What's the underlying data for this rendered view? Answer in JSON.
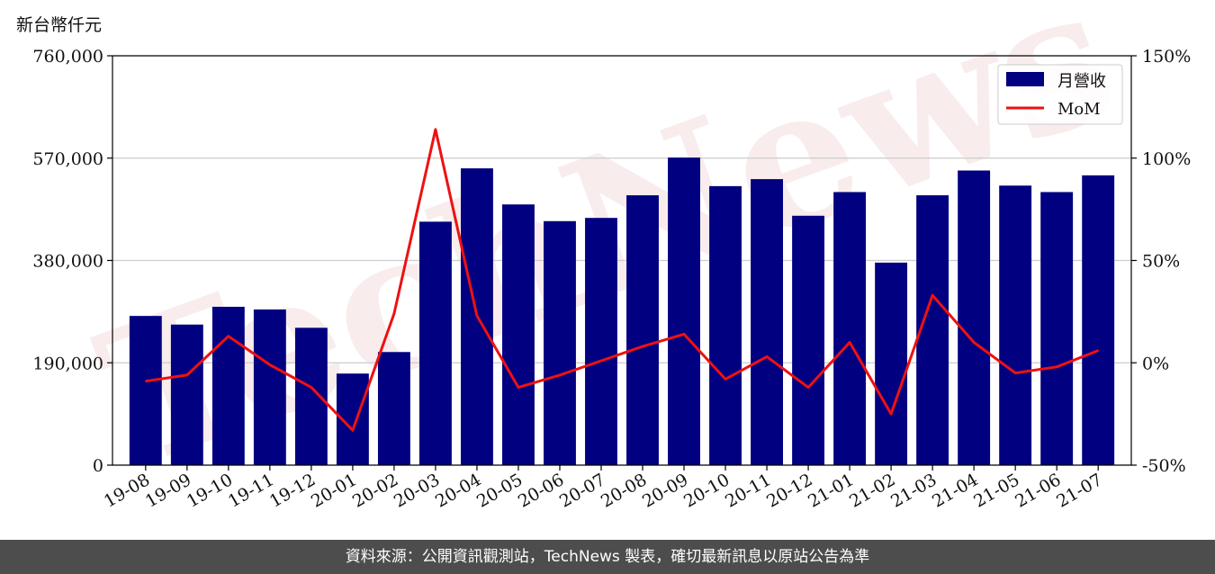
{
  "unit_label": "新台幣仟元",
  "footer_text": "資料來源：公開資訊觀測站，TechNews 製表，確切最新訊息以原站公告為準",
  "watermark_text": "TechNews",
  "colors": {
    "bar": "#000080",
    "line": "#ee1111",
    "grid": "#cccccc",
    "footer_bg": "#4d4d4d",
    "watermark": "#f3dede"
  },
  "chart_data": {
    "type": "bar",
    "categories": [
      "19-08",
      "19-09",
      "19-10",
      "19-11",
      "19-12",
      "20-01",
      "20-02",
      "20-03",
      "20-04",
      "20-05",
      "20-06",
      "20-07",
      "20-08",
      "20-09",
      "20-10",
      "20-11",
      "20-12",
      "21-01",
      "21-02",
      "21-03",
      "21-04",
      "21-05",
      "21-06",
      "21-07"
    ],
    "series": [
      {
        "name": "月營收",
        "type": "bar",
        "axis": "left",
        "values": [
          277000,
          261000,
          294000,
          289000,
          255000,
          170000,
          210000,
          452000,
          551000,
          484000,
          453000,
          459000,
          501000,
          571000,
          518000,
          531000,
          463000,
          507000,
          376000,
          501000,
          547000,
          519000,
          507000,
          538000
        ]
      },
      {
        "name": "MoM",
        "type": "line",
        "axis": "right",
        "values": [
          -9,
          -6,
          13,
          -1,
          -12,
          -33,
          24,
          114,
          23,
          -12,
          -6,
          1,
          8,
          14,
          -8,
          3,
          -12,
          10,
          -25,
          33,
          10,
          -5,
          -2,
          6
        ]
      }
    ],
    "y_left": {
      "min": 0,
      "max": 760000,
      "ticks": [
        "0",
        "190,000",
        "380,000",
        "570,000",
        "760,000"
      ],
      "tick_values": [
        0,
        190000,
        380000,
        570000,
        760000
      ]
    },
    "y_right": {
      "min": -50,
      "max": 150,
      "ticks": [
        "-50%",
        "0%",
        "50%",
        "100%",
        "150%"
      ],
      "tick_values": [
        -50,
        0,
        50,
        100,
        150
      ]
    },
    "grid": true,
    "legend_position": "top-right"
  }
}
